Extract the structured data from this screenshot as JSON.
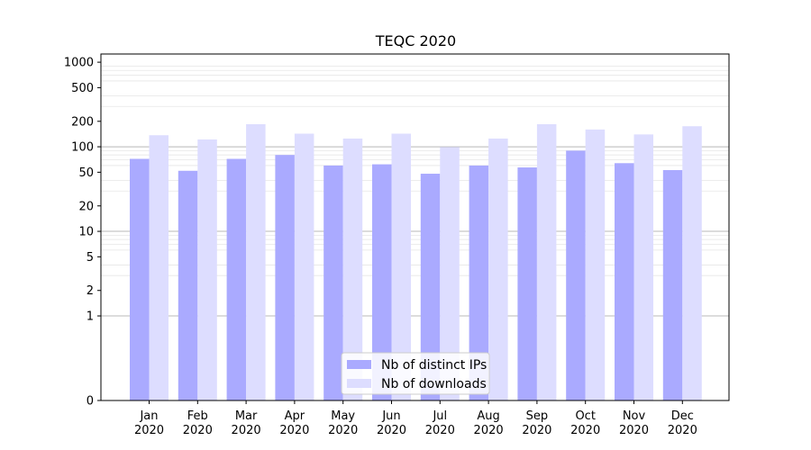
{
  "chart_data": {
    "type": "bar",
    "title": "TEQC 2020",
    "xlabel": "",
    "ylabel": "",
    "yscale": "symlog",
    "ylim": [
      0,
      1250
    ],
    "yticks": [
      0,
      1,
      2,
      5,
      10,
      20,
      50,
      100,
      200,
      500,
      1000
    ],
    "grid": true,
    "legend_position": "lower-center",
    "categories": [
      [
        "Jan",
        "2020"
      ],
      [
        "Feb",
        "2020"
      ],
      [
        "Mar",
        "2020"
      ],
      [
        "Apr",
        "2020"
      ],
      [
        "May",
        "2020"
      ],
      [
        "Jun",
        "2020"
      ],
      [
        "Jul",
        "2020"
      ],
      [
        "Aug",
        "2020"
      ],
      [
        "Sep",
        "2020"
      ],
      [
        "Oct",
        "2020"
      ],
      [
        "Nov",
        "2020"
      ],
      [
        "Dec",
        "2020"
      ]
    ],
    "series": [
      {
        "name": "Nb of distinct IPs",
        "color": "#aaaaff",
        "values": [
          72,
          52,
          72,
          80,
          60,
          62,
          48,
          60,
          57,
          90,
          64,
          53
        ]
      },
      {
        "name": "Nb of downloads",
        "color": "#ddddff",
        "values": [
          137,
          122,
          185,
          143,
          125,
          143,
          99,
          125,
          185,
          160,
          140,
          175
        ]
      }
    ]
  }
}
